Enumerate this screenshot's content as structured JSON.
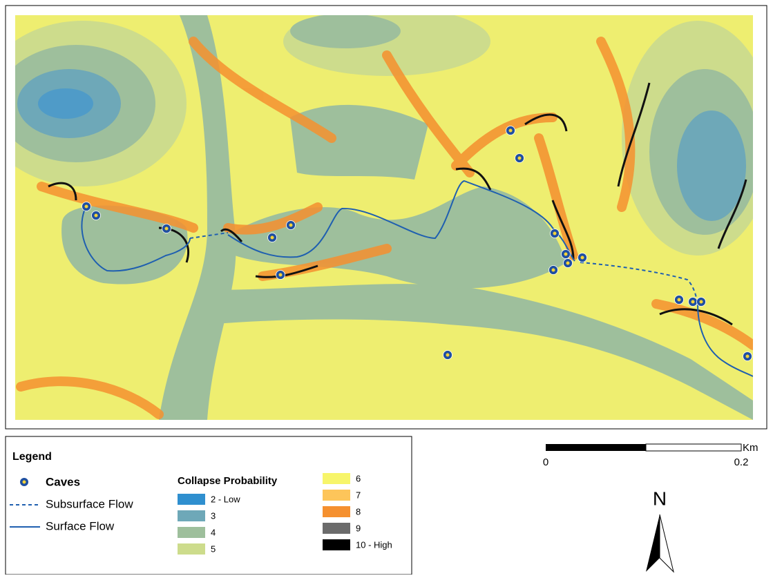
{
  "legend": {
    "title": "Legend",
    "caves": "Caves",
    "subsurface_flow": "Subsurface Flow",
    "surface_flow": "Surface Flow",
    "collapse_title": "Collapse Probability",
    "classes": [
      {
        "label": "2 - Low",
        "color": "#2f8fcf"
      },
      {
        "label": "3",
        "color": "#6ea8b8"
      },
      {
        "label": "4",
        "color": "#9ebf9c"
      },
      {
        "label": "5",
        "color": "#cddc8c"
      },
      {
        "label": "6",
        "color": "#f7f56a"
      },
      {
        "label": "7",
        "color": "#fdc55a"
      },
      {
        "label": "8",
        "color": "#f5902f"
      },
      {
        "label": "9",
        "color": "#6b6b6b"
      },
      {
        "label": "10 - High",
        "color": "#000000"
      }
    ]
  },
  "scale_bar": {
    "start": "0",
    "end": "0.2",
    "unit": "Km"
  },
  "north_arrow": {
    "label": "N"
  }
}
